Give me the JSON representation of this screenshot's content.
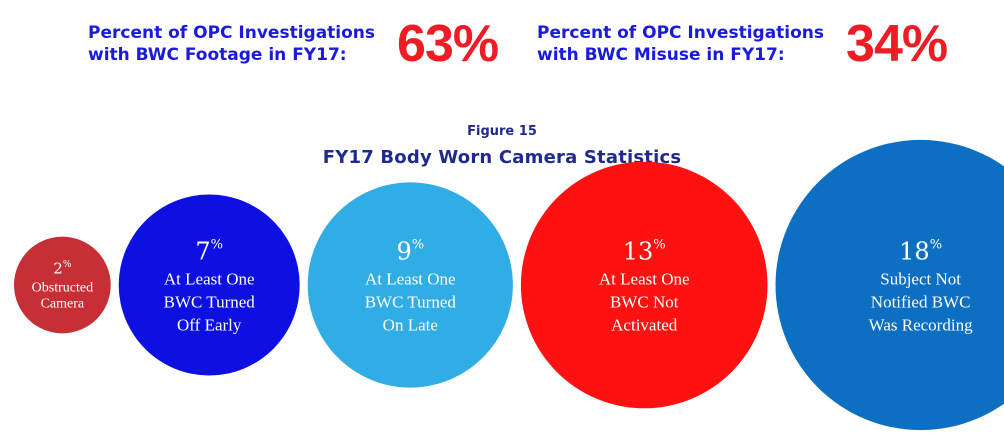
{
  "stats": [
    {
      "label_lines": [
        "Percent of OPC Investigations",
        "with BWC Footage in FY17:"
      ],
      "value": "63%"
    },
    {
      "label_lines": [
        "Percent of OPC Investigations",
        "with BWC Misuse in FY17:"
      ],
      "value": "34%"
    }
  ],
  "figure": {
    "number": "Figure 15",
    "title": "FY17 Body Worn Camera Statistics"
  },
  "chart_data": {
    "type": "bubble",
    "title": "FY17 Body Worn Camera Statistics",
    "unit": "%",
    "bubbles": [
      {
        "value": 2,
        "label_lines": [
          "Obstructed",
          "Camera"
        ],
        "color": "#c62f35"
      },
      {
        "value": 7,
        "label_lines": [
          "At Least One",
          "BWC Turned",
          "Off  Early"
        ],
        "color": "#0d10e0"
      },
      {
        "value": 9,
        "label_lines": [
          "At Least One",
          "BWC Turned",
          "On Late"
        ],
        "color": "#30ade5"
      },
      {
        "value": 13,
        "label_lines": [
          "At Least One",
          "BWC Not",
          "Activated"
        ],
        "color": "#fd1111"
      },
      {
        "value": 18,
        "label_lines": [
          "Subject Not",
          "Notified BWC",
          "Was Recording"
        ],
        "color": "#0c6fc2"
      }
    ]
  }
}
